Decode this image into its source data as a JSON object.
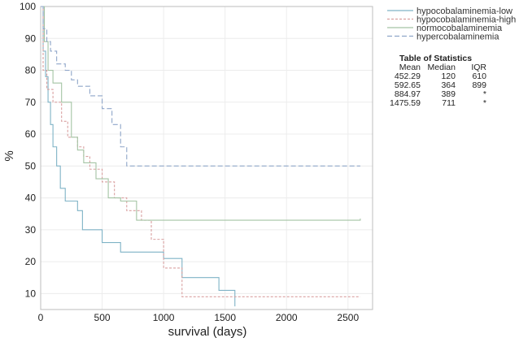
{
  "chart_data": {
    "type": "line",
    "xlabel": "survival (days)",
    "ylabel": "%",
    "xlim": [
      0,
      2700
    ],
    "ylim": [
      5,
      100
    ],
    "x_ticks": [
      0,
      500,
      1000,
      1500,
      2000,
      2500
    ],
    "y_ticks": [
      10,
      20,
      30,
      40,
      50,
      60,
      70,
      80,
      90,
      100
    ],
    "grid": true,
    "legend_position": "right",
    "series": [
      {
        "name": "hypocobalaminemia-low",
        "color": "#7fb3c6",
        "dash": "",
        "points": [
          [
            0,
            100
          ],
          [
            20,
            86
          ],
          [
            40,
            78
          ],
          [
            60,
            70
          ],
          [
            80,
            63
          ],
          [
            100,
            56
          ],
          [
            130,
            50
          ],
          [
            160,
            43
          ],
          [
            200,
            39
          ],
          [
            300,
            36
          ],
          [
            340,
            30
          ],
          [
            500,
            26
          ],
          [
            650,
            23
          ],
          [
            1000,
            21
          ],
          [
            1150,
            15
          ],
          [
            1450,
            11
          ],
          [
            1580,
            6
          ]
        ]
      },
      {
        "name": "hypocobalaminemia-high",
        "color": "#d9a0a0",
        "dash": "3,2",
        "points": [
          [
            0,
            100
          ],
          [
            20,
            80
          ],
          [
            50,
            74
          ],
          [
            100,
            70
          ],
          [
            170,
            64
          ],
          [
            220,
            59
          ],
          [
            300,
            56
          ],
          [
            350,
            53
          ],
          [
            400,
            49
          ],
          [
            500,
            45
          ],
          [
            600,
            40
          ],
          [
            700,
            36
          ],
          [
            820,
            33
          ],
          [
            900,
            27
          ],
          [
            1000,
            18
          ],
          [
            1150,
            9
          ],
          [
            2600,
            9
          ]
        ]
      },
      {
        "name": "normocobalaminemia",
        "color": "#a4c4a4",
        "dash": "",
        "points": [
          [
            0,
            100
          ],
          [
            30,
            89
          ],
          [
            60,
            80
          ],
          [
            100,
            76
          ],
          [
            170,
            70
          ],
          [
            250,
            59
          ],
          [
            300,
            55
          ],
          [
            350,
            51
          ],
          [
            450,
            46
          ],
          [
            550,
            40
          ],
          [
            650,
            39
          ],
          [
            780,
            33
          ],
          [
            1000,
            33
          ],
          [
            2600,
            33.5
          ]
        ]
      },
      {
        "name": "hypercobalaminemia",
        "color": "#8fa6c9",
        "dash": "6,3",
        "points": [
          [
            0,
            100
          ],
          [
            20,
            93
          ],
          [
            50,
            89
          ],
          [
            80,
            86
          ],
          [
            130,
            82
          ],
          [
            200,
            80
          ],
          [
            250,
            77
          ],
          [
            300,
            75
          ],
          [
            400,
            72
          ],
          [
            500,
            68
          ],
          [
            580,
            63
          ],
          [
            650,
            56
          ],
          [
            700,
            50
          ],
          [
            2600,
            50
          ]
        ]
      }
    ],
    "stats_table": {
      "title": "Table of Statistics",
      "headers": [
        "Mean",
        "Median",
        "IQR"
      ],
      "rows": [
        [
          "452.29",
          "120",
          "610"
        ],
        [
          "592.65",
          "364",
          "899"
        ],
        [
          "884.97",
          "389",
          "*"
        ],
        [
          "1475.59",
          "711",
          "*"
        ]
      ]
    }
  }
}
